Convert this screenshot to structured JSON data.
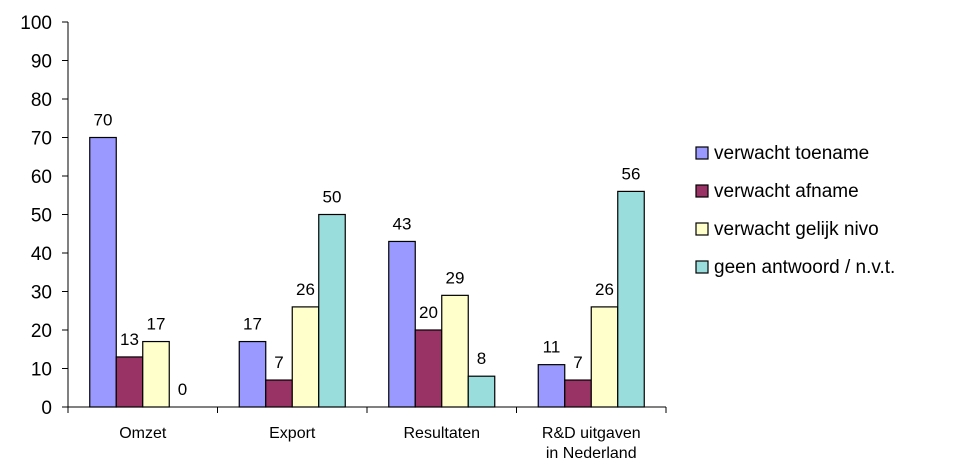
{
  "chart_data": {
    "type": "bar",
    "categories": [
      [
        "Omzet"
      ],
      [
        "Export"
      ],
      [
        "Resultaten"
      ],
      [
        "R&D uitgaven",
        "in Nederland"
      ]
    ],
    "series": [
      {
        "name": "verwacht toename",
        "values": [
          70,
          17,
          43,
          11
        ],
        "color": "#9999FF"
      },
      {
        "name": "verwacht afname",
        "values": [
          13,
          7,
          20,
          7
        ],
        "color": "#993366"
      },
      {
        "name": "verwacht gelijk nivo",
        "values": [
          17,
          26,
          29,
          26
        ],
        "color": "#FFFFCC"
      },
      {
        "name": "geen antwoord / n.v.t.",
        "values": [
          0,
          50,
          8,
          56
        ],
        "color": "#99DDDD"
      }
    ],
    "title": "",
    "xlabel": "",
    "ylabel": "",
    "ylim": [
      0,
      100
    ],
    "yticks": [
      0,
      10,
      20,
      30,
      40,
      50,
      60,
      70,
      80,
      90,
      100
    ],
    "grid": false,
    "legend": "right"
  }
}
